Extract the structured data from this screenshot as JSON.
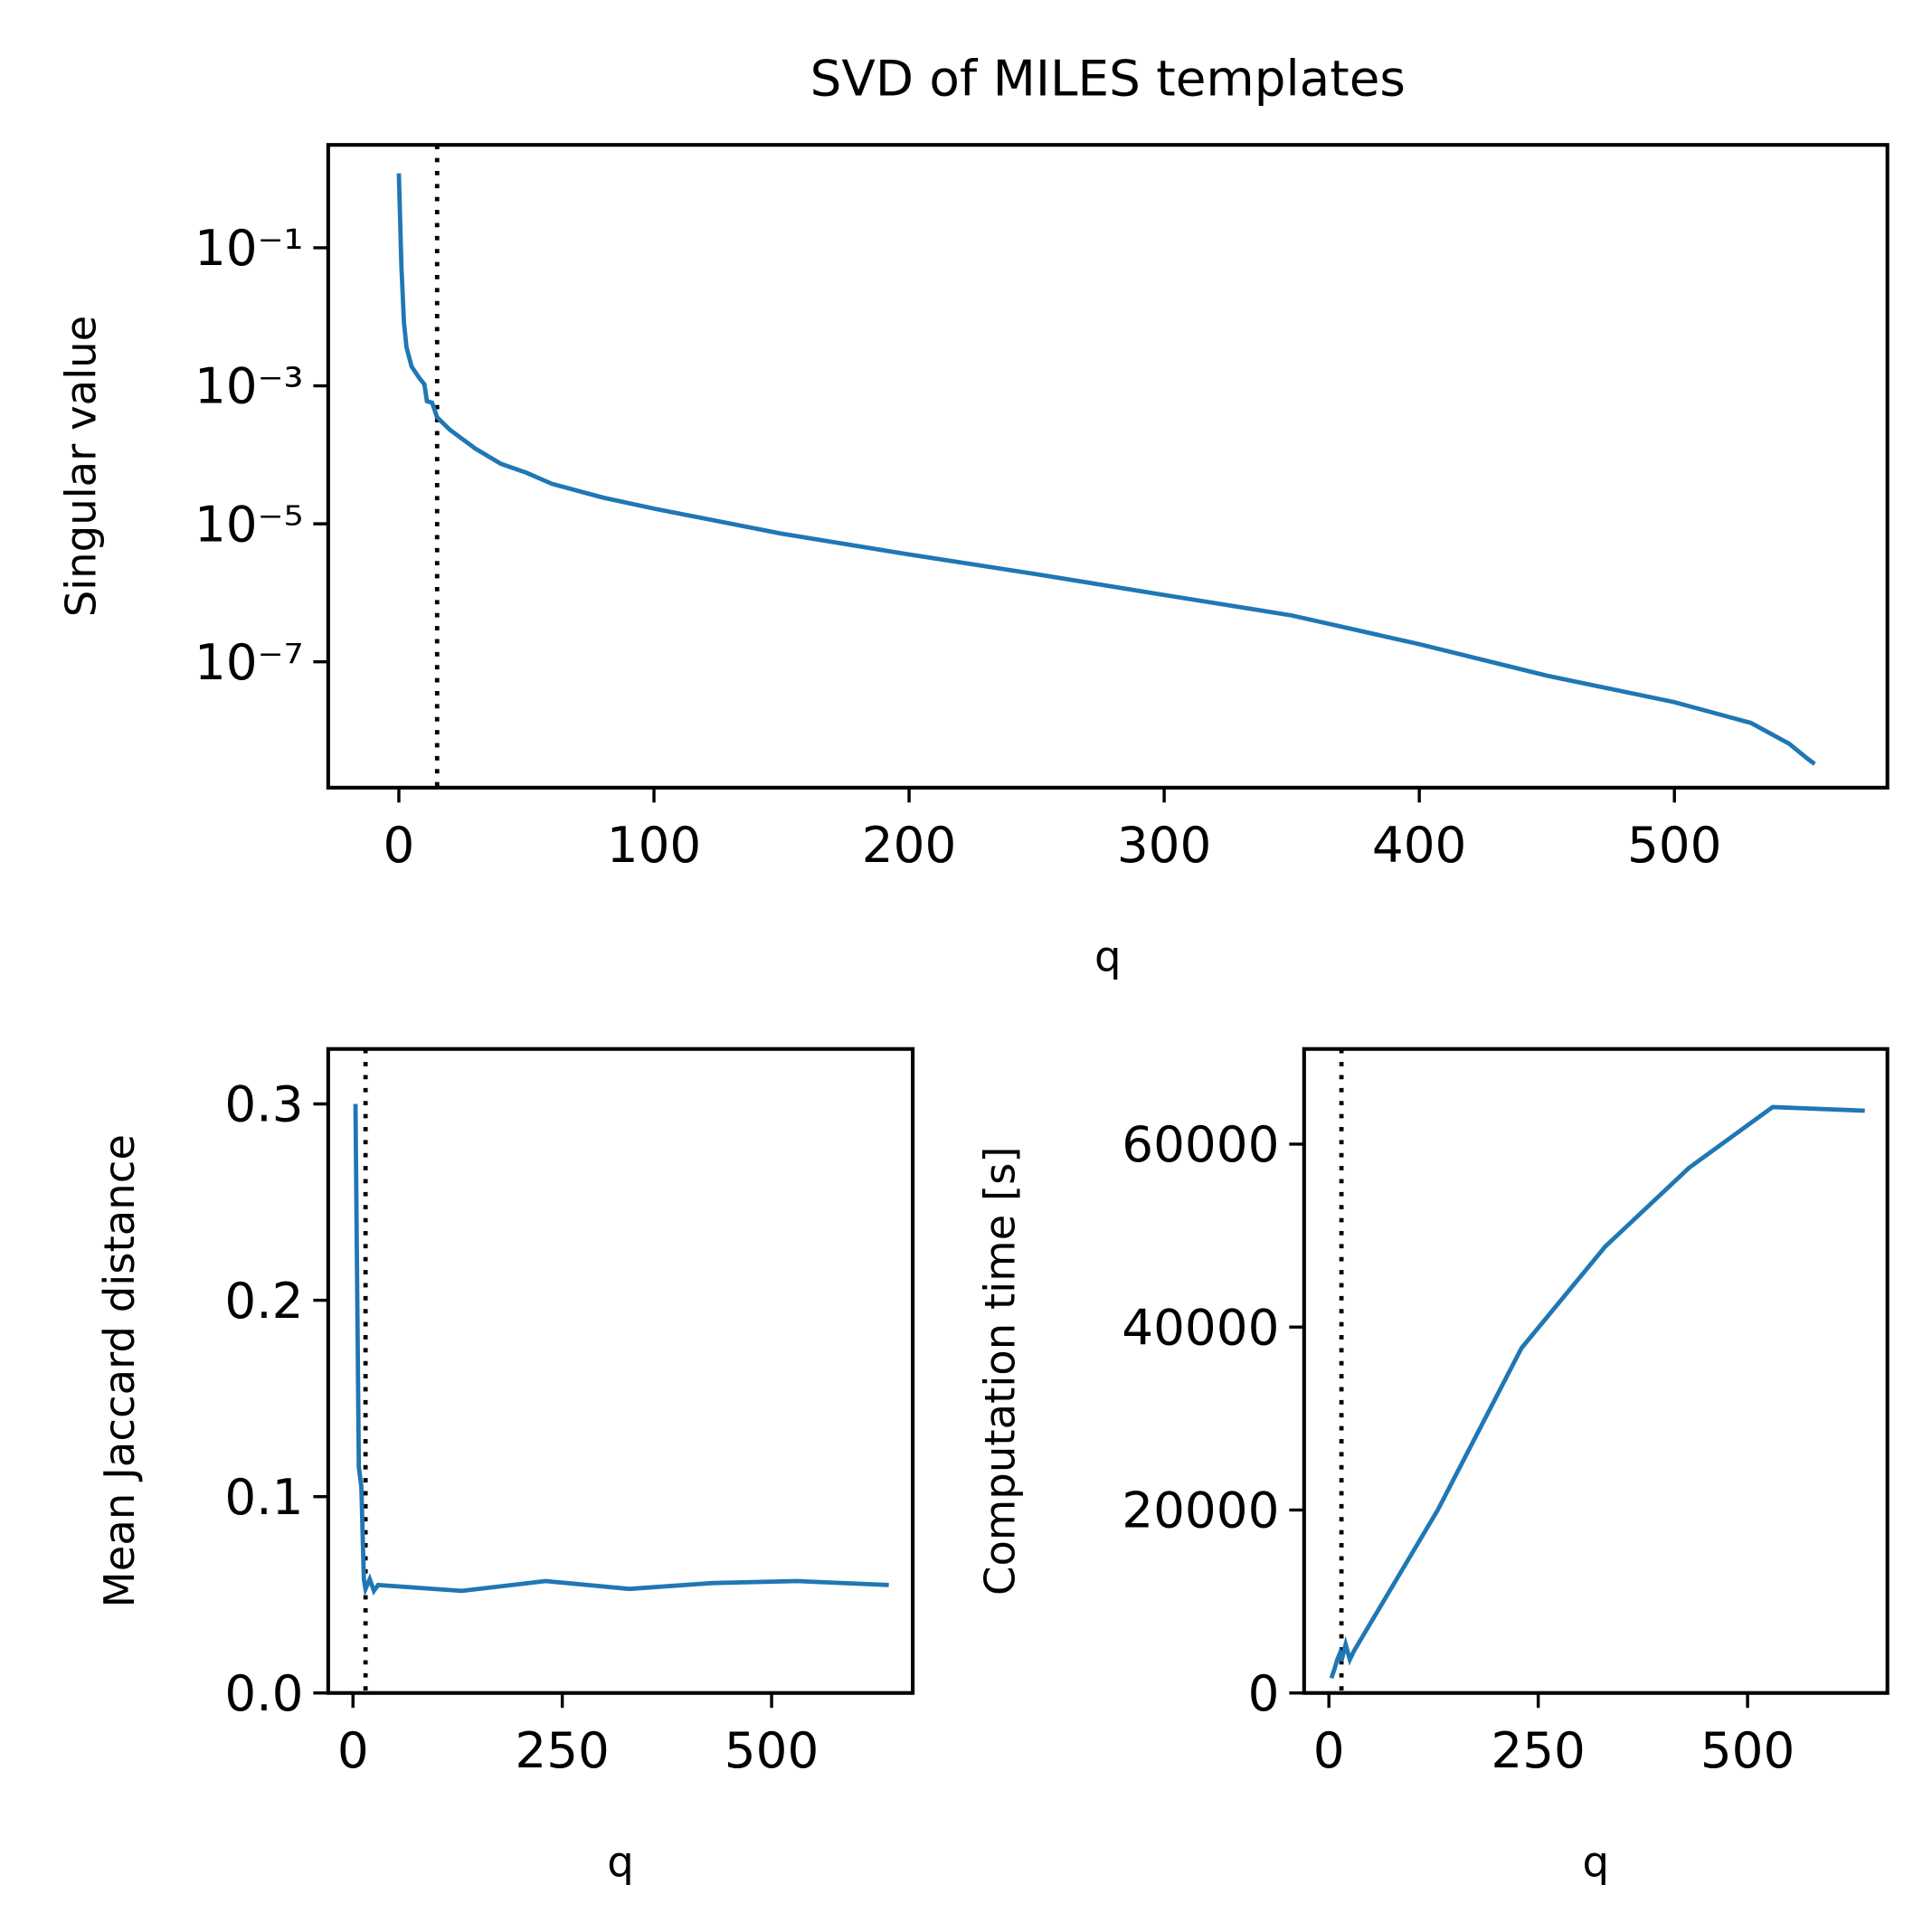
{
  "chart_data": [
    {
      "type": "line",
      "title": "SVD of MILES templates",
      "x_label": "q",
      "y_label": "Singular value",
      "log_y": true,
      "color": "#1f77b4",
      "vline": 15,
      "x": [
        0,
        1,
        2,
        3,
        5,
        8,
        10,
        11,
        13,
        15,
        20,
        30,
        40,
        50,
        60,
        80,
        100,
        150,
        200,
        250,
        300,
        350,
        400,
        450,
        500,
        530,
        545,
        552,
        555
      ],
      "values": [
        1.2,
        0.054,
        0.0083,
        0.0036,
        0.0019,
        0.0013,
        0.00105,
        0.0006,
        0.00057,
        0.00035,
        0.00023,
        0.000123,
        7.4e-05,
        5.5e-05,
        3.8e-05,
        2.4e-05,
        1.66e-05,
        7.2e-06,
        3.6e-06,
        1.86e-06,
        9.3e-07,
        4.7e-07,
        1.8e-07,
        6.3e-08,
        2.6e-08,
        1.3e-08,
        6.5e-09,
        4e-09,
        3.3e-09
      ],
      "xlim": [
        -27.7,
        583.5
      ],
      "xticks": [
        0,
        100,
        200,
        300,
        400,
        500
      ],
      "ylim": [
        1.5e-09,
        3.1
      ],
      "yticks": [
        {
          "value": 0.1,
          "label": "10⁻¹"
        },
        {
          "value": 0.001,
          "label": "10⁻³"
        },
        {
          "value": 1e-05,
          "label": "10⁻⁵"
        },
        {
          "value": 1e-07,
          "label": "10⁻⁷"
        }
      ]
    },
    {
      "type": "line",
      "x_label": "q",
      "y_label": "Mean Jaccard distance",
      "color": "#1f77b4",
      "vline": 15,
      "x": [
        3,
        7,
        10,
        13,
        15,
        20,
        25,
        30,
        130,
        230,
        330,
        430,
        530,
        640
      ],
      "values": [
        0.3,
        0.115,
        0.105,
        0.058,
        0.053,
        0.058,
        0.052,
        0.055,
        0.052,
        0.057,
        0.053,
        0.056,
        0.057,
        0.055
      ],
      "xlim": [
        -29.6,
        668.6
      ],
      "xticks": [
        0,
        250,
        500
      ],
      "ylim": [
        0,
        0.328
      ],
      "yticks": [
        {
          "value": 0,
          "label": "0.0"
        },
        0.1,
        0.2,
        0.3
      ]
    },
    {
      "type": "line",
      "x_label": "q",
      "y_label": "Computation time [s]",
      "color": "#1f77b4",
      "vline": 15,
      "x": [
        3,
        7,
        10,
        13,
        15,
        20,
        25,
        30,
        130,
        230,
        330,
        430,
        530,
        640
      ],
      "values": [
        1620,
        2700,
        3650,
        4300,
        3500,
        5300,
        3650,
        4600,
        20000,
        37700,
        48800,
        57400,
        64050,
        63650
      ],
      "xlim": [
        -29.6,
        667
      ],
      "xticks": [
        0,
        250,
        500
      ],
      "ylim": [
        0,
        70400
      ],
      "yticks": [
        0,
        20000,
        40000,
        60000
      ]
    }
  ]
}
